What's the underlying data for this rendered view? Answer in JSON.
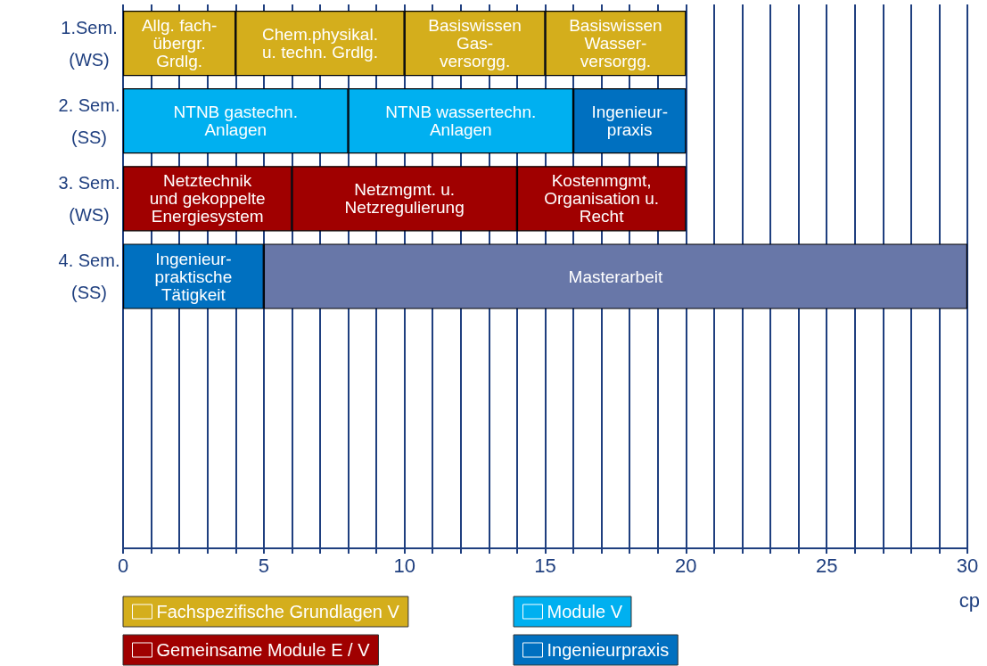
{
  "chart_data": {
    "type": "bar",
    "orientation": "horizontal",
    "stacked": true,
    "categories": [
      "1.Sem.\n(WS)",
      "2. Sem.\n(SS)",
      "3. Sem.\n(WS)",
      "4. Sem.\n(SS)",
      null,
      null,
      null
    ],
    "series": [
      {
        "values": [
          4,
          8,
          6,
          5,
          null,
          null,
          null
        ],
        "colors": [
          "#d4ae1c",
          "#00b0f0",
          "#a00000",
          "#0070c0",
          null,
          null,
          null
        ],
        "value_labels": [
          "Allg. fach-\nübergr.\nGrdlg.",
          "NTNB gastechn.\nAnlagen",
          "Netztechnik\nund gekoppelte\nEnergiesystem",
          "Ingenieur-\npraktische\nTätigkeit",
          null,
          null,
          null
        ]
      },
      {
        "values": [
          6,
          8,
          8,
          25,
          null,
          null,
          null
        ],
        "colors": [
          "#d4ae1c",
          "#00b0f0",
          "#a00000",
          "#6877a8",
          null,
          null,
          null
        ],
        "value_labels": [
          "Chem.physikal.\nu. techn. Grdlg.",
          "NTNB wassertechn.\nAnlagen",
          "Netzmgmt. u.\nNetzregulierung",
          "Masterarbeit",
          null,
          null,
          null
        ]
      },
      {
        "values": [
          5,
          4,
          6,
          null,
          null,
          null,
          null
        ],
        "colors": [
          "#d4ae1c",
          "#0070c0",
          "#a00000",
          null,
          null,
          null,
          null
        ],
        "value_labels": [
          "Basiswissen\nGas-\nversorgg.",
          "Ingenieur-\npraxis",
          "Kostenmgmt,\nOrganisation u.\nRecht",
          null,
          null,
          null,
          null
        ]
      },
      {
        "values": [
          5,
          null,
          null,
          null,
          null,
          null,
          null
        ],
        "colors": [
          "#d4ae1c",
          null,
          null,
          null,
          null,
          null,
          null
        ],
        "value_labels": [
          "Basiswissen\nWasser-\nversorgg.",
          null,
          null,
          null,
          null,
          null,
          null
        ]
      },
      {
        "name": "Fachspezifische Grundlagen V",
        "color": "#d4ae1c",
        "values": [
          null,
          null,
          null,
          null,
          null,
          null,
          null
        ]
      },
      {
        "name": "Module V",
        "color": "#00b0f0",
        "values": [
          null,
          null,
          null,
          null,
          null,
          null,
          null
        ]
      },
      {
        "name": "Gemeinsame Module E / V",
        "color": "#a00000",
        "values": [
          null,
          null,
          null,
          null,
          null,
          null,
          null
        ]
      },
      {
        "name": "Ingenieurpraxis",
        "color": "#0070c0",
        "values": [
          null,
          null,
          null,
          null,
          null,
          null,
          null
        ]
      }
    ],
    "xlim": [
      0,
      30
    ],
    "xticks": [
      0,
      {
        "value": 1,
        "label": null
      },
      {
        "value": 2,
        "label": null
      },
      {
        "value": 3,
        "label": null
      },
      {
        "value": 4,
        "label": null
      },
      5,
      {
        "value": 6,
        "label": null
      },
      {
        "value": 7,
        "label": null
      },
      {
        "value": 8,
        "label": null
      },
      {
        "value": 9,
        "label": null
      },
      10,
      {
        "value": 11,
        "label": null
      },
      {
        "value": 12,
        "label": null
      },
      {
        "value": 13,
        "label": null
      },
      {
        "value": 14,
        "label": null
      },
      15,
      {
        "value": 16,
        "label": null
      },
      {
        "value": 17,
        "label": null
      },
      {
        "value": 18,
        "label": null
      },
      {
        "value": 19,
        "label": null
      },
      20,
      {
        "value": 21,
        "label": null
      },
      {
        "value": 22,
        "label": null
      },
      {
        "value": 23,
        "label": null
      },
      {
        "value": 24,
        "label": null
      },
      25,
      {
        "value": 26,
        "label": null
      },
      {
        "value": 27,
        "label": null
      },
      {
        "value": 28,
        "label": null
      },
      {
        "value": 29,
        "label": null
      },
      30
    ],
    "xlabel": "cp",
    "grid": "x",
    "legend": "bottom"
  }
}
